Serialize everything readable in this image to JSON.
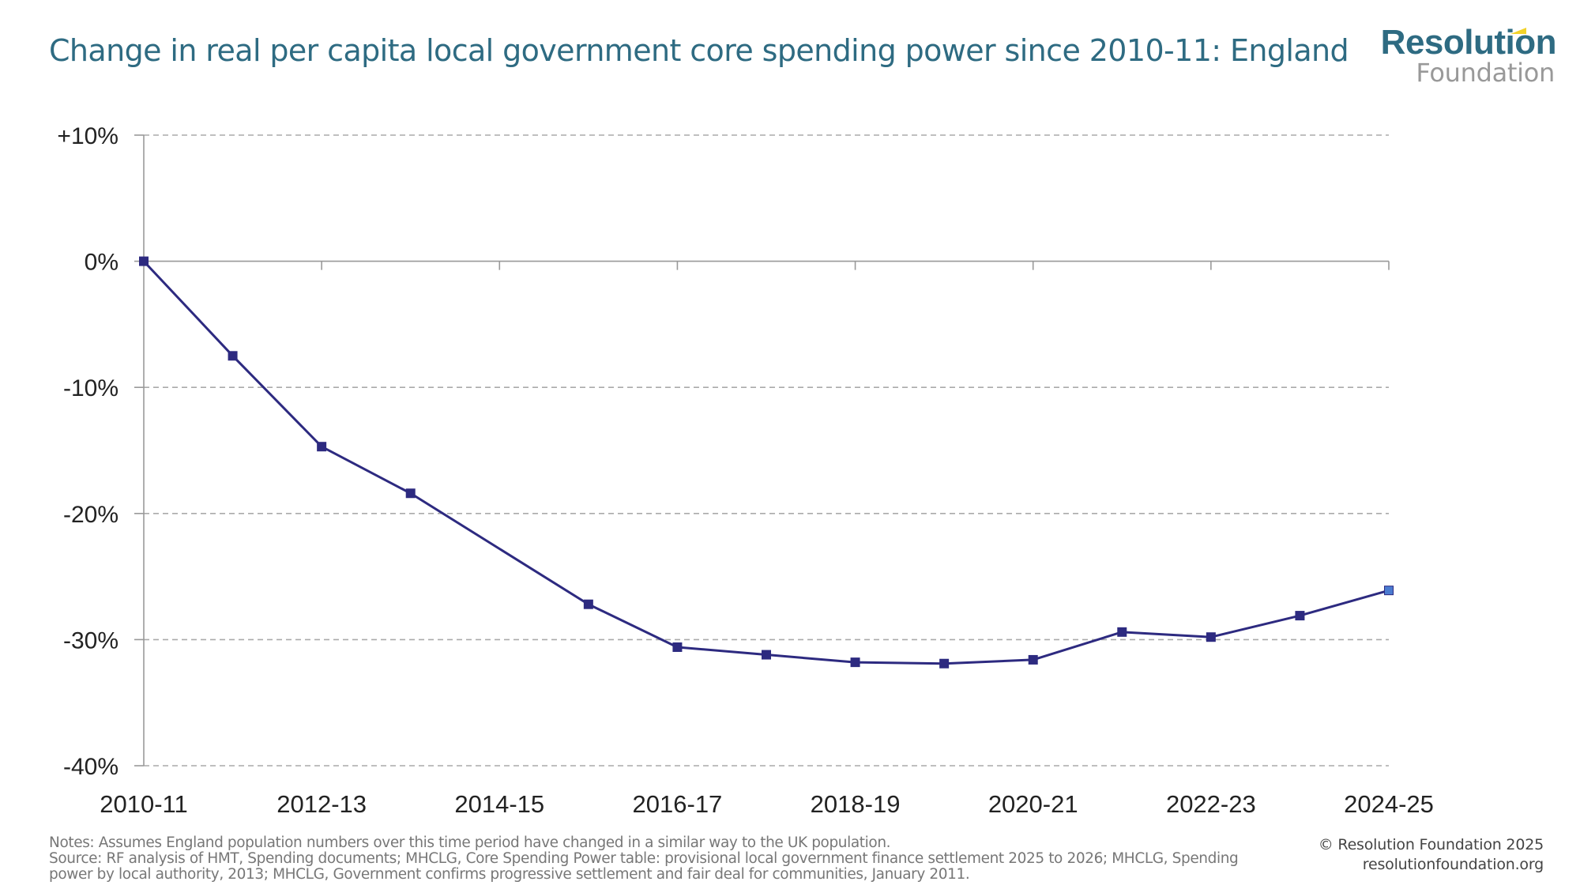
{
  "header": {
    "title": "Change in real per capita local government core spending power since 2010-11: England",
    "logo_top": "Resolution",
    "logo_bottom": "Foundation"
  },
  "chart_data": {
    "type": "line",
    "title": "Change in real per capita local government core spending power since 2010-11: England",
    "xlabel": "",
    "ylabel": "",
    "x": [
      "2010-11",
      "2011-12",
      "2012-13",
      "2013-14",
      "2014-15",
      "2015-16",
      "2016-17",
      "2017-18",
      "2018-19",
      "2019-20",
      "2020-21",
      "2021-22",
      "2022-23",
      "2023-24",
      "2024-25"
    ],
    "x_tick_labels": [
      "2010-11",
      "2012-13",
      "2014-15",
      "2016-17",
      "2018-19",
      "2020-21",
      "2022-23",
      "2024-25"
    ],
    "y_tick_labels": [
      "+10%",
      "0%",
      "-10%",
      "-20%",
      "-30%",
      "-40%"
    ],
    "y_ticks": [
      10,
      0,
      -10,
      -20,
      -30,
      -40
    ],
    "ylim": [
      -40,
      10
    ],
    "grid": "horizontal dashed",
    "legend": "none",
    "series": [
      {
        "name": "Real per capita core spending power change (%)",
        "color": "#2d2a80",
        "highlight_last_color": "#4a7bd0",
        "values": [
          0.0,
          -7.5,
          -14.7,
          -18.4,
          null,
          -27.2,
          -30.6,
          -31.2,
          -31.8,
          -31.9,
          -31.6,
          -29.4,
          -29.8,
          -28.1,
          -26.1
        ]
      }
    ]
  },
  "footer": {
    "notes_line1": "Notes: Assumes England population numbers over this time period have changed in a similar way to the UK population.",
    "notes_line2": "Source: RF analysis of HMT, Spending documents; MHCLG, Core Spending Power table: provisional local government finance settlement 2025 to 2026; MHCLG, Spending",
    "notes_line3": "power by local authority, 2013; MHCLG, Government confirms progressive settlement and fair deal for communities, January 2011.",
    "copyright": "© Resolution Foundation 2025",
    "website": "resolutionfoundation.org"
  }
}
